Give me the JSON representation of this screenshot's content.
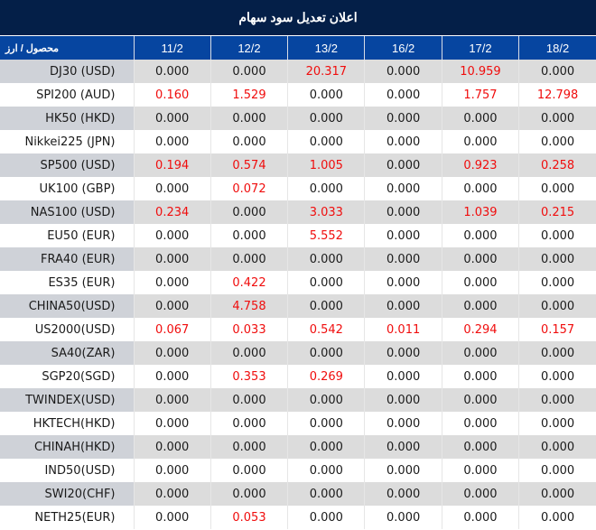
{
  "title": "اعلان تعديل سود سهام",
  "header": {
    "product_label": "محصول / ارز",
    "dates": [
      "11/2",
      "12/2",
      "13/2",
      "16/2",
      "17/2",
      "18/2"
    ]
  },
  "colors": {
    "title_bg": "#041f48",
    "header_bg": "#0645a0",
    "row_odd_bg": "#dcdcdc",
    "row_odd_product_bg": "#cfd2d8",
    "row_even_bg": "#ffffff",
    "highlight_text": "#f00d0d",
    "normal_text": "#1a1a1a"
  },
  "rows": [
    {
      "product": "DJ30 (USD)",
      "values": [
        "0.000",
        "0.000",
        "20.317",
        "0.000",
        "10.959",
        "0.000"
      ]
    },
    {
      "product": "SPI200 (AUD)",
      "values": [
        "0.160",
        "1.529",
        "0.000",
        "0.000",
        "1.757",
        "12.798"
      ]
    },
    {
      "product": "HK50 (HKD)",
      "values": [
        "0.000",
        "0.000",
        "0.000",
        "0.000",
        "0.000",
        "0.000"
      ]
    },
    {
      "product": "Nikkei225 (JPN)",
      "values": [
        "0.000",
        "0.000",
        "0.000",
        "0.000",
        "0.000",
        "0.000"
      ]
    },
    {
      "product": "SP500 (USD)",
      "values": [
        "0.194",
        "0.574",
        "1.005",
        "0.000",
        "0.923",
        "0.258"
      ]
    },
    {
      "product": "UK100 (GBP)",
      "values": [
        "0.000",
        "0.072",
        "0.000",
        "0.000",
        "0.000",
        "0.000"
      ]
    },
    {
      "product": "NAS100 (USD)",
      "values": [
        "0.234",
        "0.000",
        "3.033",
        "0.000",
        "1.039",
        "0.215"
      ]
    },
    {
      "product": "EU50 (EUR)",
      "values": [
        "0.000",
        "0.000",
        "5.552",
        "0.000",
        "0.000",
        "0.000"
      ]
    },
    {
      "product": "FRA40 (EUR)",
      "values": [
        "0.000",
        "0.000",
        "0.000",
        "0.000",
        "0.000",
        "0.000"
      ]
    },
    {
      "product": "ES35 (EUR)",
      "values": [
        "0.000",
        "0.422",
        "0.000",
        "0.000",
        "0.000",
        "0.000"
      ]
    },
    {
      "product": "CHINA50(USD)",
      "values": [
        "0.000",
        "4.758",
        "0.000",
        "0.000",
        "0.000",
        "0.000"
      ]
    },
    {
      "product": "US2000(USD)",
      "values": [
        "0.067",
        "0.033",
        "0.542",
        "0.011",
        "0.294",
        "0.157"
      ]
    },
    {
      "product": "SA40(ZAR)",
      "values": [
        "0.000",
        "0.000",
        "0.000",
        "0.000",
        "0.000",
        "0.000"
      ]
    },
    {
      "product": "SGP20(SGD)",
      "values": [
        "0.000",
        "0.353",
        "0.269",
        "0.000",
        "0.000",
        "0.000"
      ]
    },
    {
      "product": "TWINDEX(USD)",
      "values": [
        "0.000",
        "0.000",
        "0.000",
        "0.000",
        "0.000",
        "0.000"
      ]
    },
    {
      "product": "HKTECH(HKD)",
      "values": [
        "0.000",
        "0.000",
        "0.000",
        "0.000",
        "0.000",
        "0.000"
      ]
    },
    {
      "product": "CHINAH(HKD)",
      "values": [
        "0.000",
        "0.000",
        "0.000",
        "0.000",
        "0.000",
        "0.000"
      ]
    },
    {
      "product": "IND50(USD)",
      "values": [
        "0.000",
        "0.000",
        "0.000",
        "0.000",
        "0.000",
        "0.000"
      ]
    },
    {
      "product": "SWI20(CHF)",
      "values": [
        "0.000",
        "0.000",
        "0.000",
        "0.000",
        "0.000",
        "0.000"
      ]
    },
    {
      "product": "NETH25(EUR)",
      "values": [
        "0.000",
        "0.053",
        "0.000",
        "0.000",
        "0.000",
        "0.000"
      ]
    }
  ]
}
